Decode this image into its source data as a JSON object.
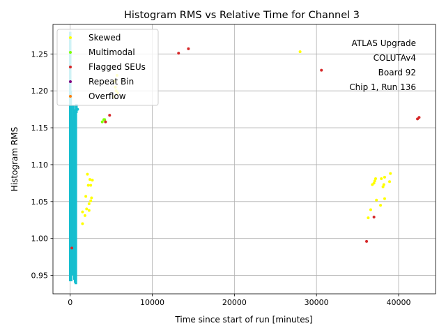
{
  "chart_data": {
    "type": "scatter",
    "title": "Histogram RMS vs Relative Time for Channel 3",
    "xlabel": "Time since start of run [minutes]",
    "ylabel": "Histogram RMS",
    "xlim": [
      -2100,
      44500
    ],
    "ylim": [
      0.925,
      1.29
    ],
    "xticks": [
      0,
      10000,
      20000,
      30000,
      40000
    ],
    "xtick_labels": [
      "0",
      "10000",
      "20000",
      "30000",
      "40000"
    ],
    "yticks": [
      0.95,
      1.0,
      1.05,
      1.1,
      1.15,
      1.2,
      1.25
    ],
    "ytick_labels": [
      "0.95",
      "1.00",
      "1.05",
      "1.10",
      "1.15",
      "1.20",
      "1.25"
    ],
    "grid": true,
    "legend_position": "top-left",
    "annotation": [
      "ATLAS Upgrade",
      "COLUTAv4",
      "Board 92",
      "Chip 1, Run 136"
    ],
    "series": [
      {
        "name": "Skewed",
        "color": "#ffff00",
        "points": [
          [
            1500,
            1.036
          ],
          [
            1500,
            1.02
          ],
          [
            1800,
            1.031
          ],
          [
            1900,
            1.057
          ],
          [
            2000,
            1.04
          ],
          [
            2100,
            1.087
          ],
          [
            2200,
            1.072
          ],
          [
            2300,
            1.038
          ],
          [
            2300,
            1.047
          ],
          [
            2400,
            1.08
          ],
          [
            2500,
            1.072
          ],
          [
            2500,
            1.051
          ],
          [
            2600,
            1.055
          ],
          [
            2700,
            1.079
          ],
          [
            5400,
            1.213
          ],
          [
            5500,
            1.205
          ],
          [
            5600,
            1.2
          ],
          [
            5700,
            1.221
          ],
          [
            5800,
            1.197
          ],
          [
            5300,
            1.192
          ],
          [
            28000,
            1.253
          ],
          [
            36300,
            1.028
          ],
          [
            36600,
            1.039
          ],
          [
            36800,
            1.073
          ],
          [
            37000,
            1.075
          ],
          [
            37100,
            1.078
          ],
          [
            37200,
            1.081
          ],
          [
            37300,
            1.052
          ],
          [
            37800,
            1.045
          ],
          [
            37900,
            1.081
          ],
          [
            38100,
            1.07
          ],
          [
            38200,
            1.073
          ],
          [
            38300,
            1.083
          ],
          [
            38300,
            1.054
          ],
          [
            38900,
            1.077
          ],
          [
            39000,
            1.088
          ]
        ]
      },
      {
        "name": "Multimodal",
        "color": "#7fff00",
        "points": [
          [
            3900,
            1.158
          ],
          [
            4100,
            1.161
          ],
          [
            4200,
            1.161
          ]
        ]
      },
      {
        "name": "Flagged SEUs",
        "color": "#d62728",
        "points": [
          [
            200,
            0.987
          ],
          [
            4300,
            1.158
          ],
          [
            4800,
            1.167
          ],
          [
            13200,
            1.251
          ],
          [
            14400,
            1.257
          ],
          [
            30600,
            1.228
          ],
          [
            36100,
            0.996
          ],
          [
            37000,
            1.029
          ],
          [
            42300,
            1.162
          ],
          [
            42500,
            1.164
          ]
        ]
      },
      {
        "name": "Repeat Bin",
        "color": "#800080",
        "points": []
      },
      {
        "name": "Overflow",
        "color": "#ff7f0e",
        "points": []
      },
      {
        "name": "",
        "color": "#17becf",
        "vertical_bands": [
          [
            0,
            0.942,
            1.28
          ],
          [
            60,
            0.945,
            1.2
          ],
          [
            120,
            0.942,
            1.18
          ],
          [
            180,
            0.95,
            1.16
          ],
          [
            240,
            0.96,
            1.15
          ],
          [
            330,
            0.96,
            1.12
          ],
          [
            420,
            0.95,
            1.18
          ],
          [
            510,
            0.944,
            1.17
          ],
          [
            600,
            0.94,
            1.17
          ],
          [
            690,
            0.938,
            1.175
          ],
          [
            760,
            1.17,
            1.182
          ]
        ],
        "points": [
          [
            900,
            1.175
          ]
        ]
      }
    ]
  }
}
